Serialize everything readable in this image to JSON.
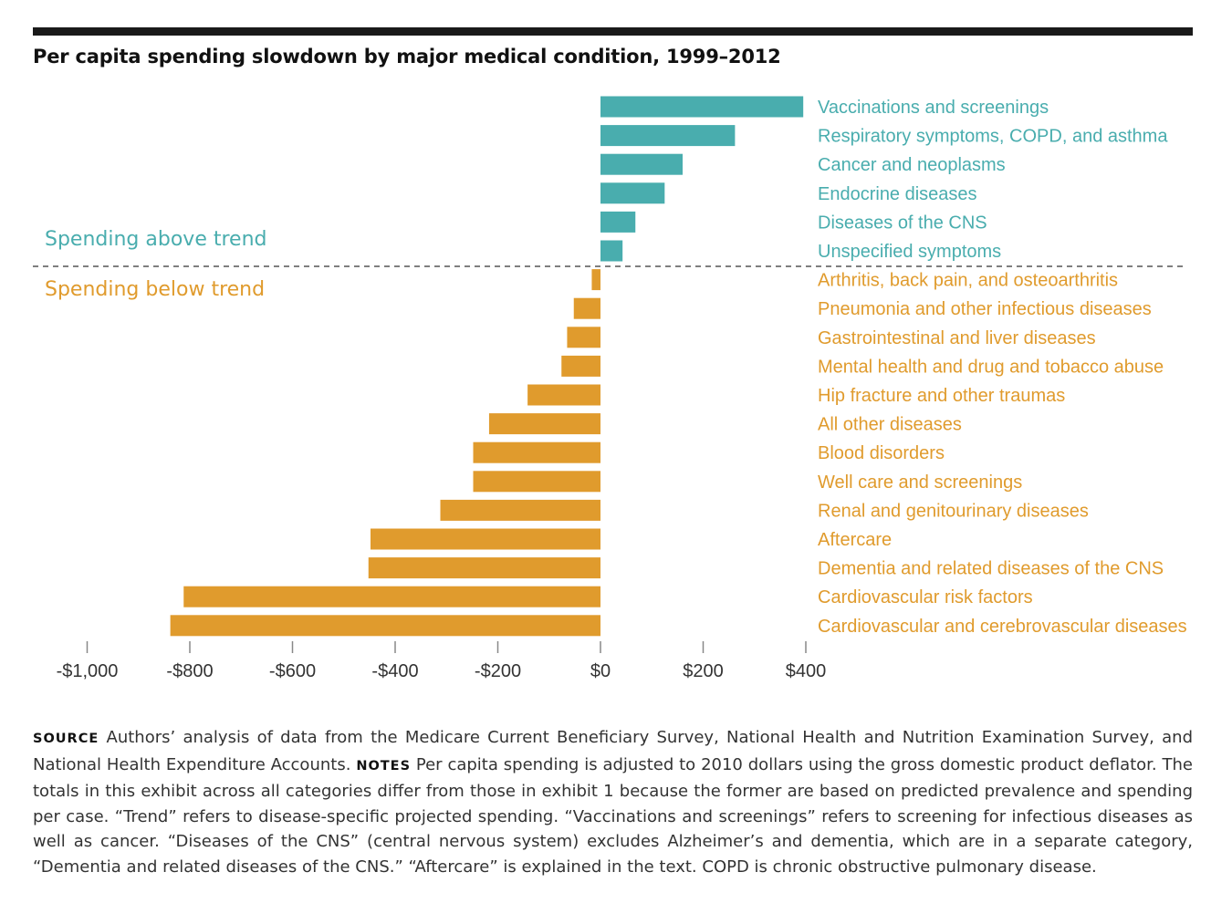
{
  "chart_data": {
    "type": "bar",
    "orientation": "horizontal",
    "title": "Per capita spending slowdown by major medical condition, 1999–2012",
    "xlabel": "",
    "ylabel": "",
    "xlim": [
      -1000,
      400
    ],
    "xticks": [
      -1000,
      -800,
      -600,
      -400,
      -200,
      0,
      200,
      400
    ],
    "xtick_labels": [
      "-$1,000",
      "-$800",
      "-$600",
      "-$400",
      "-$200",
      "$0",
      "$200",
      "$400"
    ],
    "grid": false,
    "categories": [
      "Vaccinations and screenings",
      "Respiratory symptoms, COPD, and asthma",
      "Cancer and neoplasms",
      "Endocrine diseases",
      "Diseases of the CNS",
      "Unspecified symptoms",
      "Arthritis, back pain, and osteoarthritis",
      "Pneumonia and other infectious diseases",
      "Gastrointestinal and liver diseases",
      "Mental health and drug and tobacco abuse",
      "Hip fracture and other traumas",
      "All other diseases",
      "Blood disorders",
      "Well care and screenings",
      "Renal and genitourinary diseases",
      "Aftercare",
      "Dementia and related diseases of the CNS",
      "Cardiovascular risk factors",
      "Cardiovascular  and cerebrovascular diseases"
    ],
    "values": [
      395,
      262,
      160,
      125,
      68,
      43,
      -17,
      -52,
      -65,
      -76,
      -142,
      -217,
      -248,
      -248,
      -312,
      -448,
      -452,
      -812,
      -838
    ],
    "region_labels": {
      "above": "Spending above trend",
      "below": "Spending below trend"
    },
    "colors": {
      "above": "#49adae",
      "below": "#e09b2d"
    }
  },
  "footnote": {
    "source_label": "Source",
    "source_text": " Authors’ analysis of data from the Medicare Current Beneficiary Survey, National Health and Nutrition Examination Survey, and National Health Expenditure Accounts. ",
    "notes_label": "Notes",
    "notes_text": " Per capita spending is adjusted to 2010 dollars using the gross domestic product deflator. The totals in this exhibit across all categories differ from those in exhibit 1 because the former are based on predicted prevalence and spending per case. “Trend” refers to disease-specific projected spending. “Vaccinations and screenings” refers to screening for infectious diseases as well as cancer. “Diseases of the CNS” (central nervous system) excludes Alzheimer’s and dementia, which are in a separate category, “Dementia and related diseases of the CNS.” “Aftercare” is explained in the text. COPD is chronic obstructive pulmonary disease."
  }
}
